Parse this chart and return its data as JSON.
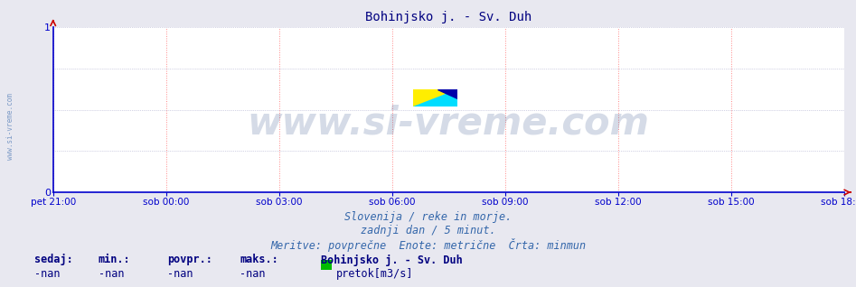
{
  "title": "Bohinjsko j. - Sv. Duh",
  "title_color": "#000080",
  "title_fontsize": 10,
  "bg_color": "#e8e8f0",
  "plot_bg_color": "#ffffff",
  "x_labels": [
    "pet 21:00",
    "sob 00:00",
    "sob 03:00",
    "sob 06:00",
    "sob 09:00",
    "sob 12:00",
    "sob 15:00",
    "sob 18:00"
  ],
  "x_ticks_norm": [
    0.0,
    0.142857,
    0.285714,
    0.428571,
    0.571429,
    0.714286,
    0.857143,
    1.0
  ],
  "ylim": [
    0,
    1
  ],
  "yticks": [
    0,
    1
  ],
  "tick_color": "#0000cc",
  "grid_v_color": "#ff8888",
  "grid_h_color": "#aaaacc",
  "grid_linestyle": ":",
  "axis_line_color": "#0000cc",
  "arrow_color": "#cc0000",
  "watermark_text": "www.si-vreme.com",
  "watermark_color": "#1a3a7a",
  "watermark_alpha": 0.18,
  "watermark_fontsize": 30,
  "side_text": "www.si-vreme.com",
  "side_text_color": "#3366aa",
  "side_text_alpha": 0.6,
  "footer_lines": [
    "Slovenija / reke in morje.",
    "zadnji dan / 5 minut.",
    "Meritve: povprečne  Enote: metrične  Črta: minmun"
  ],
  "footer_color": "#3366aa",
  "footer_fontsize": 8.5,
  "stats_labels": [
    "sedaj:",
    "min.:",
    "povpr.:",
    "maks.:"
  ],
  "stats_values": [
    "-nan",
    "-nan",
    "-nan",
    "-nan"
  ],
  "stats_color": "#000080",
  "stats_fontsize": 8.5,
  "legend_station": "Bohinjsko j. - Sv. Duh",
  "legend_series": "pretok[m3/s]",
  "legend_color": "#00bb00",
  "legend_fontsize": 8.5,
  "logo_yellow": "#ffee00",
  "logo_cyan": "#00ddff",
  "logo_blue": "#0000aa"
}
